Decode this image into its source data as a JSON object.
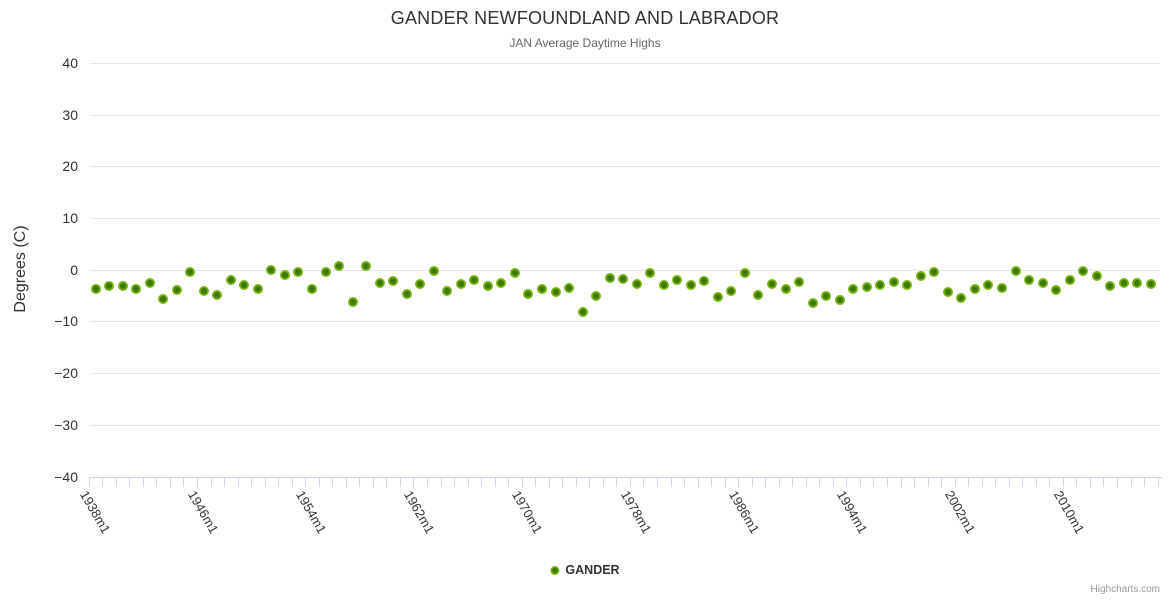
{
  "chart": {
    "title": "GANDER NEWFOUNDLAND AND LABRADOR",
    "subtitle": "JAN Average Daytime Highs",
    "y_axis_title": "Degrees (C)",
    "legend_label": "GANDER",
    "credits": "Highcharts.com",
    "colors": {
      "marker_outer": "#77b30e",
      "marker_inner": "#3e7a00",
      "gridline": "#e6e6e6",
      "axis": "#ccd6eb",
      "title_text": "#333333",
      "subtitle_text": "#666666",
      "credits_text": "#999999"
    }
  },
  "chart_data": {
    "type": "scatter",
    "title": "GANDER NEWFOUNDLAND AND LABRADOR",
    "subtitle": "JAN Average Daytime Highs",
    "xlabel": "",
    "ylabel": "Degrees (C)",
    "ylim": [
      -40,
      40
    ],
    "y_ticks": [
      40,
      30,
      20,
      10,
      0,
      -10,
      -20,
      -30,
      -40
    ],
    "y_tick_labels": [
      "40",
      "30",
      "20",
      "10",
      "0",
      "−10",
      "−20",
      "−30",
      "−40"
    ],
    "x_tick_labels": [
      "1938m1",
      "1946m1",
      "1954m1",
      "1962m1",
      "1970m1",
      "1978m1",
      "1986m1",
      "1994m1",
      "2002m1",
      "2010m1"
    ],
    "x_tick_years": [
      1938,
      1946,
      1954,
      1962,
      1970,
      1978,
      1986,
      1994,
      2002,
      2010
    ],
    "grid": "horizontal-only",
    "legend_position": "bottom-center",
    "series": [
      {
        "name": "GANDER",
        "start_year": 1938,
        "end_year": 2016,
        "values": [
          -3.7,
          -3.1,
          -3.2,
          -3.8,
          -2.5,
          -5.7,
          -4.0,
          -0.4,
          -4.2,
          -4.8,
          -2.0,
          -2.9,
          -3.8,
          0.0,
          -1.0,
          -0.4,
          -3.7,
          -0.5,
          0.8,
          -6.3,
          0.8,
          -2.6,
          -2.2,
          -4.6,
          -2.8,
          -0.2,
          -4.1,
          -2.7,
          -2.0,
          -3.2,
          -2.5,
          -0.7,
          -4.6,
          -3.7,
          -4.3,
          -3.6,
          -8.1,
          -5.1,
          -1.6,
          -1.7,
          -2.7,
          -0.7,
          -2.9,
          -2.0,
          -2.9,
          -2.2,
          -5.3,
          -4.2,
          -0.6,
          -4.8,
          -2.8,
          -3.8,
          -2.4,
          -6.4,
          -5.1,
          -5.8,
          -3.8,
          -3.4,
          -2.9,
          -2.3,
          -2.9,
          -1.3,
          -0.5,
          -4.3,
          -5.5,
          -3.7,
          -2.9,
          -3.6,
          -0.3,
          -2.0,
          -2.6,
          -3.9,
          -1.9,
          -0.2,
          -1.2,
          -3.1,
          -2.6,
          -2.6,
          -2.8
        ]
      }
    ]
  }
}
